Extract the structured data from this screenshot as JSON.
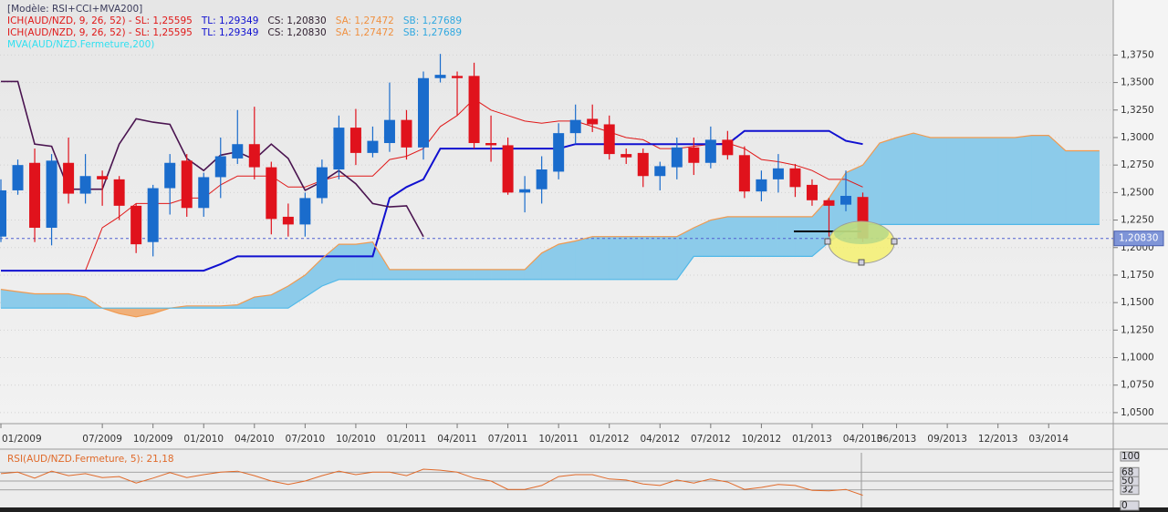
{
  "chart_data": [
    {
      "type": "candlestick",
      "legend_lines": [
        [
          {
            "text": "[Modèle: RSI+CCI+MVA200]",
            "color": "#3a3a5a"
          }
        ],
        [
          {
            "text": "ICH(AUD/NZD, 9, 26, 52) -  SL: 1,25595",
            "color": "#e01818"
          },
          {
            "text": "TL: 1,29349",
            "color": "#1010d0"
          },
          {
            "text": "CS: 1,20830",
            "color": "#302030"
          },
          {
            "text": "SA: 1,27472",
            "color": "#f09040"
          },
          {
            "text": "SB: 1,27689",
            "color": "#30a8e0"
          }
        ],
        [
          {
            "text": "ICH(AUD/NZD, 9, 26, 52) -  SL: 1,25595",
            "color": "#e01818"
          },
          {
            "text": "TL: 1,29349",
            "color": "#1010d0"
          },
          {
            "text": "CS: 1,20830",
            "color": "#302030"
          },
          {
            "text": "SA: 1,27472",
            "color": "#f09040"
          },
          {
            "text": "SB: 1,27689",
            "color": "#30a8e0"
          }
        ],
        [
          {
            "text": "MVA(AUD/NZD.Fermeture,200)",
            "color": "#30e0f0"
          }
        ]
      ],
      "categories": [
        "01/2009",
        null,
        null,
        null,
        null,
        null,
        "07/2009",
        null,
        null,
        "10/2009",
        null,
        null,
        "01/2010",
        null,
        null,
        "04/2010",
        null,
        null,
        "07/2010",
        null,
        null,
        "10/2010",
        null,
        null,
        "01/2011",
        null,
        null,
        "04/2011",
        null,
        null,
        "07/2011",
        null,
        null,
        "10/2011",
        null,
        null,
        "01/2012",
        null,
        null,
        "04/2012",
        null,
        null,
        "07/2012",
        null,
        null,
        "10/2012",
        null,
        null,
        "01/2013",
        null,
        null,
        "04/2013",
        null,
        "06/2013",
        null,
        null,
        "09/2013",
        null,
        null,
        "12/2013",
        null,
        null,
        "03/2014",
        null,
        null,
        null
      ],
      "open": [
        1.21,
        1.252,
        1.277,
        1.218,
        1.277,
        1.249,
        1.265,
        1.262,
        1.238,
        1.205,
        1.254,
        1.279,
        1.236,
        1.264,
        1.281,
        1.294,
        1.273,
        1.228,
        1.221,
        1.245,
        1.271,
        1.309,
        1.286,
        1.295,
        1.316,
        1.291,
        1.354,
        1.356,
        1.356,
        1.295,
        1.293,
        1.25,
        1.253,
        1.269,
        1.304,
        1.317,
        1.312,
        1.285,
        1.286,
        1.265,
        1.273,
        1.291,
        1.277,
        1.298,
        1.284,
        1.251,
        1.262,
        1.272,
        1.257,
        1.243,
        1.239,
        1.246,
        null,
        null,
        null,
        null,
        null,
        null,
        null,
        null,
        null,
        null,
        null,
        null,
        null,
        null
      ],
      "high": [
        1.262,
        1.28,
        1.29,
        1.285,
        1.3,
        1.285,
        1.27,
        1.265,
        1.24,
        1.257,
        1.285,
        1.285,
        1.268,
        1.3,
        1.325,
        1.328,
        1.278,
        1.24,
        1.25,
        1.28,
        1.32,
        1.326,
        1.31,
        1.35,
        1.325,
        1.36,
        1.376,
        1.36,
        1.368,
        1.32,
        1.3,
        1.265,
        1.283,
        1.313,
        1.33,
        1.33,
        1.32,
        1.29,
        1.29,
        1.278,
        1.3,
        1.3,
        1.31,
        1.306,
        1.292,
        1.27,
        1.285,
        1.276,
        1.262,
        1.245,
        1.27,
        1.25,
        null,
        null,
        null,
        null,
        null,
        null,
        null,
        null,
        null,
        null,
        null,
        null,
        null,
        null
      ],
      "low": [
        1.205,
        1.248,
        1.205,
        1.202,
        1.24,
        1.24,
        1.238,
        1.225,
        1.195,
        1.192,
        1.23,
        1.228,
        1.228,
        1.245,
        1.276,
        1.262,
        1.212,
        1.21,
        1.21,
        1.24,
        1.262,
        1.275,
        1.282,
        1.287,
        1.28,
        1.28,
        1.35,
        1.32,
        1.29,
        1.278,
        1.248,
        1.232,
        1.24,
        1.262,
        1.294,
        1.305,
        1.28,
        1.276,
        1.255,
        1.252,
        1.262,
        1.266,
        1.272,
        1.28,
        1.245,
        1.242,
        1.25,
        1.246,
        1.238,
        1.21,
        1.233,
        1.205,
        null,
        null,
        null,
        null,
        null,
        null,
        null,
        null,
        null,
        null,
        null,
        null,
        null,
        null
      ],
      "close": [
        1.252,
        1.275,
        1.218,
        1.279,
        1.249,
        1.265,
        1.262,
        1.238,
        1.203,
        1.254,
        1.277,
        1.236,
        1.264,
        1.283,
        1.294,
        1.273,
        1.226,
        1.221,
        1.245,
        1.273,
        1.309,
        1.286,
        1.297,
        1.316,
        1.291,
        1.354,
        1.357,
        1.354,
        1.295,
        1.293,
        1.25,
        1.253,
        1.271,
        1.304,
        1.316,
        1.312,
        1.285,
        1.282,
        1.265,
        1.274,
        1.291,
        1.277,
        1.298,
        1.284,
        1.251,
        1.262,
        1.272,
        1.255,
        1.243,
        1.238,
        1.247,
        1.2083,
        null,
        null,
        null,
        null,
        null,
        null,
        null,
        null,
        null,
        null,
        null,
        null,
        null,
        null
      ],
      "up_color": "#1a6ccc",
      "down_color": "#e0121c",
      "series": [
        {
          "color": "#e01818",
          "values": [
            null,
            null,
            null,
            1.179,
            1.179,
            1.179,
            1.218,
            1.228,
            1.24,
            1.24,
            1.24,
            1.245,
            1.245,
            1.257,
            1.265,
            1.265,
            1.265,
            1.255,
            1.255,
            1.261,
            1.265,
            1.265,
            1.265,
            1.28,
            1.283,
            1.29,
            1.31,
            1.32,
            1.335,
            1.325,
            1.32,
            1.315,
            1.313,
            1.315,
            1.315,
            1.31,
            1.305,
            1.3,
            1.298,
            1.29,
            1.29,
            1.292,
            1.294,
            1.295,
            1.29,
            1.28,
            1.278,
            1.275,
            1.27,
            1.262,
            1.262,
            1.255,
            null,
            null,
            null,
            null,
            null,
            null,
            null,
            null,
            null,
            null,
            null,
            null,
            null,
            null
          ]
        },
        {
          "color": "#1010d0",
          "values": [
            1.179,
            1.179,
            1.179,
            1.179,
            1.179,
            1.179,
            1.179,
            1.179,
            1.179,
            1.179,
            1.179,
            1.179,
            1.179,
            1.185,
            1.192,
            1.192,
            1.192,
            1.192,
            1.192,
            1.192,
            1.192,
            1.192,
            1.192,
            1.245,
            1.255,
            1.262,
            1.29,
            1.29,
            1.29,
            1.29,
            1.29,
            1.29,
            1.29,
            1.29,
            1.294,
            1.294,
            1.294,
            1.294,
            1.294,
            1.294,
            1.294,
            1.294,
            1.294,
            1.294,
            1.306,
            1.306,
            1.306,
            1.306,
            1.306,
            1.306,
            1.297,
            1.294,
            null,
            null,
            null,
            null,
            null,
            null,
            null,
            null,
            null,
            null,
            null,
            null,
            null,
            null
          ]
        },
        {
          "color": "#4a1450",
          "values": [
            1.351,
            1.351,
            1.294,
            1.292,
            1.253,
            1.253,
            1.253,
            1.294,
            1.317,
            1.314,
            1.312,
            1.281,
            1.27,
            1.284,
            1.287,
            1.28,
            1.294,
            1.281,
            1.252,
            1.26,
            1.27,
            1.258,
            1.24,
            1.237,
            1.238,
            1.21,
            null,
            null,
            null,
            null,
            null,
            null,
            null,
            null,
            null,
            null,
            null,
            null,
            null,
            null,
            null,
            null,
            null,
            null,
            null,
            null,
            null,
            null,
            null,
            null,
            null,
            null,
            null,
            null,
            null,
            null,
            null,
            null,
            null,
            null,
            null,
            null,
            null,
            null,
            null,
            null
          ]
        },
        {
          "color": "#f09a50",
          "values": [
            1.162,
            1.16,
            1.158,
            1.158,
            1.158,
            1.155,
            1.145,
            1.14,
            1.137,
            1.14,
            1.145,
            1.147,
            1.147,
            1.147,
            1.148,
            1.155,
            1.157,
            1.165,
            1.175,
            1.19,
            1.203,
            1.203,
            1.205,
            1.18,
            1.18,
            1.18,
            1.18,
            1.18,
            1.18,
            1.18,
            1.18,
            1.18,
            1.195,
            1.203,
            1.206,
            1.21,
            1.21,
            1.21,
            1.21,
            1.21,
            1.21,
            1.218,
            1.225,
            1.228,
            1.228,
            1.228,
            1.228,
            1.228,
            1.228,
            1.245,
            1.268,
            1.275,
            1.295,
            1.3,
            1.304,
            1.3,
            1.3,
            1.3,
            1.3,
            1.3,
            1.3,
            1.302,
            1.302,
            1.288,
            1.288,
            1.288
          ]
        },
        {
          "color": "#50b8e8",
          "values": [
            1.145,
            1.145,
            1.145,
            1.145,
            1.145,
            1.145,
            1.145,
            1.145,
            1.145,
            1.145,
            1.145,
            1.145,
            1.145,
            1.145,
            1.145,
            1.145,
            1.145,
            1.145,
            1.155,
            1.165,
            1.171,
            1.171,
            1.171,
            1.171,
            1.171,
            1.171,
            1.171,
            1.171,
            1.171,
            1.171,
            1.171,
            1.171,
            1.171,
            1.171,
            1.171,
            1.171,
            1.171,
            1.171,
            1.171,
            1.171,
            1.171,
            1.192,
            1.192,
            1.192,
            1.192,
            1.192,
            1.192,
            1.192,
            1.192,
            1.205,
            1.215,
            1.221,
            1.221,
            1.221,
            1.221,
            1.221,
            1.221,
            1.221,
            1.221,
            1.221,
            1.221,
            1.221,
            1.221,
            1.221,
            1.221,
            1.221
          ]
        }
      ],
      "cloud_up_color": "#8ccbea",
      "cloud_down_color": "#f0b07a",
      "current_value": 1.2083,
      "current_label": "1,20830",
      "ylim": [
        1.04,
        1.425
      ],
      "yticks": [
        {
          "value": 1.05,
          "label": "1,0500"
        },
        {
          "value": 1.075,
          "label": "1,0750"
        },
        {
          "value": 1.1,
          "label": "1,1000"
        },
        {
          "value": 1.125,
          "label": "1,1250"
        },
        {
          "value": 1.15,
          "label": "1,1500"
        },
        {
          "value": 1.175,
          "label": "1,1750"
        },
        {
          "value": 1.2,
          "label": "1,2000"
        },
        {
          "value": 1.225,
          "label": "1,2250"
        },
        {
          "value": 1.25,
          "label": "1,2500"
        },
        {
          "value": 1.275,
          "label": "1,2750"
        },
        {
          "value": 1.3,
          "label": "1,3000"
        },
        {
          "value": 1.325,
          "label": "1,3250"
        },
        {
          "value": 1.35,
          "label": "1,3500"
        },
        {
          "value": 1.375,
          "label": "1,3750"
        }
      ],
      "grid": true
    },
    {
      "type": "line",
      "title": "RSI(AUD/NZD.Fermeture, 5): 21,18",
      "color": "#e06a2a",
      "values": [
        65,
        68,
        56,
        70,
        61,
        65,
        57,
        59,
        46,
        56,
        67,
        57,
        63,
        68,
        70,
        61,
        50,
        43,
        50,
        61,
        70,
        63,
        68,
        68,
        61,
        74,
        72,
        68,
        56,
        50,
        33,
        33,
        41,
        59,
        63,
        63,
        54,
        52,
        44,
        41,
        52,
        46,
        54,
        48,
        33,
        37,
        43,
        41,
        31,
        30,
        33,
        21.18
      ],
      "ylim": [
        0,
        100
      ],
      "yticks": [
        0,
        32,
        50,
        68,
        100
      ],
      "grid": true
    }
  ]
}
